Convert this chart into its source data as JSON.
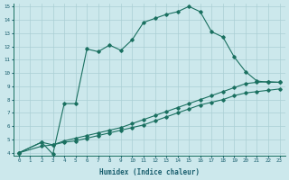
{
  "xlabel": "Humidex (Indice chaleur)",
  "bg_color": "#cce8ec",
  "grid_color": "#aacfd4",
  "line_color": "#1a7060",
  "xlim": [
    -0.5,
    23.5
  ],
  "ylim": [
    3.8,
    15.2
  ],
  "xticks": [
    0,
    1,
    2,
    3,
    4,
    5,
    6,
    7,
    8,
    9,
    10,
    11,
    12,
    13,
    14,
    15,
    16,
    17,
    18,
    19,
    20,
    21,
    22,
    23
  ],
  "yticks": [
    4,
    5,
    6,
    7,
    8,
    9,
    10,
    11,
    12,
    13,
    14,
    15
  ],
  "curve1_x": [
    0,
    2,
    3,
    4,
    5,
    6,
    7,
    8,
    9,
    10,
    11,
    12,
    13,
    14,
    15,
    16,
    17,
    18,
    19,
    20,
    21,
    22,
    23
  ],
  "curve1_y": [
    4.0,
    4.8,
    3.9,
    7.7,
    7.7,
    11.8,
    11.6,
    12.1,
    11.7,
    12.5,
    13.8,
    14.1,
    14.4,
    14.6,
    15.0,
    14.6,
    13.1,
    12.7,
    11.2,
    10.1,
    9.4,
    9.3,
    9.3
  ],
  "curve2_x": [
    0,
    2,
    3,
    4,
    5,
    6,
    7,
    8,
    9,
    10,
    11,
    12,
    13,
    14,
    15,
    16,
    17,
    18,
    19,
    20,
    21,
    22,
    23
  ],
  "curve2_y": [
    4.0,
    4.8,
    4.6,
    4.9,
    5.1,
    5.3,
    5.5,
    5.7,
    5.9,
    6.2,
    6.5,
    6.8,
    7.1,
    7.4,
    7.7,
    8.0,
    8.3,
    8.6,
    8.9,
    9.2,
    9.3,
    9.35,
    9.3
  ],
  "curve3_x": [
    0,
    2,
    3,
    4,
    5,
    6,
    7,
    8,
    9,
    10,
    11,
    12,
    13,
    14,
    15,
    16,
    17,
    18,
    19,
    20,
    21,
    22,
    23
  ],
  "curve3_y": [
    4.0,
    4.5,
    4.6,
    4.8,
    4.9,
    5.1,
    5.3,
    5.5,
    5.7,
    5.9,
    6.1,
    6.4,
    6.7,
    7.0,
    7.3,
    7.6,
    7.8,
    8.0,
    8.3,
    8.5,
    8.6,
    8.7,
    8.8
  ]
}
